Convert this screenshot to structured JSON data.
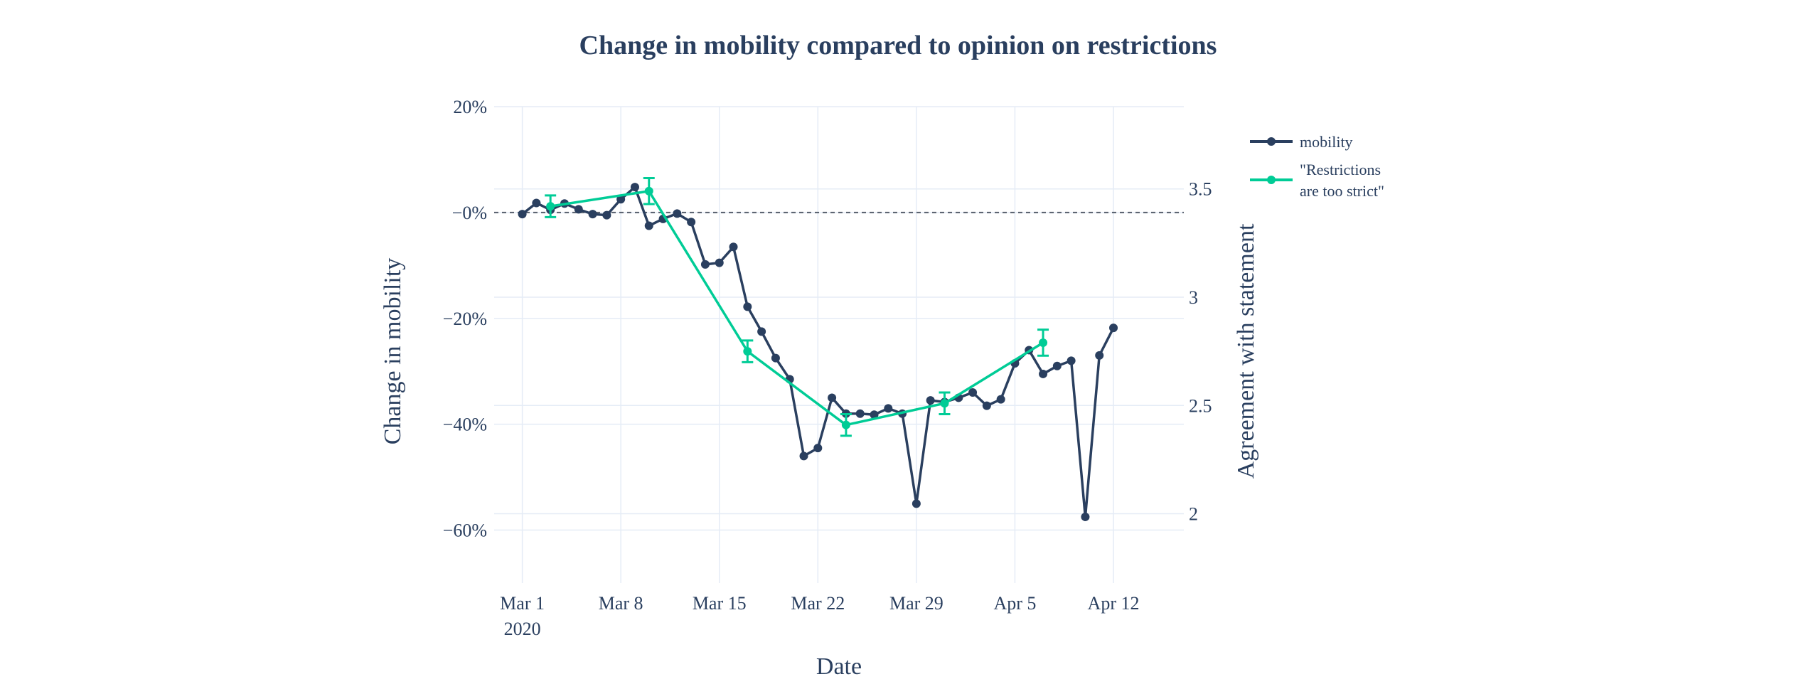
{
  "chart_data": {
    "type": "line",
    "title": "Change in mobility compared to opinion on restrictions",
    "xlabel": "Date",
    "ylabel": "Change in mobility",
    "y2label": "Agreement with statement",
    "x_ticks": [
      "Mar 1",
      "Mar 8",
      "Mar 15",
      "Mar 22",
      "Mar 29",
      "Apr 5",
      "Apr 12"
    ],
    "x_tick_sub": "2020",
    "y_ticks": [
      "20%",
      "−0%",
      "−20%",
      "−40%",
      "−60%"
    ],
    "y2_ticks": [
      "3.5",
      "3",
      "2.5",
      "2"
    ],
    "ylim": [
      -70,
      20
    ],
    "y2lim": [
      1.68,
      3.88
    ],
    "grid": true,
    "reference_line": {
      "y": 0,
      "style": "dashed"
    },
    "legend_position": "top-right",
    "series": [
      {
        "name": "mobility",
        "color": "#2a3f5f",
        "axis": "left",
        "x": [
          "2020-03-01",
          "2020-03-02",
          "2020-03-03",
          "2020-03-04",
          "2020-03-05",
          "2020-03-06",
          "2020-03-07",
          "2020-03-08",
          "2020-03-09",
          "2020-03-10",
          "2020-03-11",
          "2020-03-12",
          "2020-03-13",
          "2020-03-14",
          "2020-03-15",
          "2020-03-16",
          "2020-03-17",
          "2020-03-18",
          "2020-03-19",
          "2020-03-20",
          "2020-03-21",
          "2020-03-22",
          "2020-03-23",
          "2020-03-24",
          "2020-03-25",
          "2020-03-26",
          "2020-03-27",
          "2020-03-28",
          "2020-03-29",
          "2020-03-30",
          "2020-03-31",
          "2020-04-01",
          "2020-04-02",
          "2020-04-03",
          "2020-04-04",
          "2020-04-05",
          "2020-04-06",
          "2020-04-07",
          "2020-04-08",
          "2020-04-09",
          "2020-04-10",
          "2020-04-11",
          "2020-04-12"
        ],
        "y": [
          -0.3,
          1.8,
          0.5,
          1.7,
          0.6,
          -0.3,
          -0.5,
          2.5,
          4.8,
          -2.5,
          -1.2,
          -0.2,
          -1.8,
          -9.8,
          -9.5,
          -6.5,
          -17.8,
          -22.5,
          -27.5,
          -31.5,
          -46.0,
          -44.5,
          -35.0,
          -38.0,
          -38.0,
          -38.2,
          -37.0,
          -38.0,
          -55.0,
          -35.5,
          -35.8,
          -35.0,
          -34.0,
          -36.5,
          -35.3,
          -28.5,
          -26.0,
          -30.5,
          -29.0,
          -28.0,
          -57.5,
          -27.0,
          -21.8
        ]
      },
      {
        "name": "\"Restrictions are too strict\"",
        "name_lines": [
          "\"Restrictions",
          "are too strict\""
        ],
        "color": "#00cc96",
        "axis": "right",
        "x": [
          "2020-03-03",
          "2020-03-10",
          "2020-03-17",
          "2020-03-24",
          "2020-03-31",
          "2020-04-07"
        ],
        "y": [
          3.42,
          3.49,
          2.75,
          2.41,
          2.51,
          2.79
        ],
        "error": [
          0.05,
          0.06,
          0.05,
          0.05,
          0.05,
          0.06
        ]
      }
    ]
  }
}
